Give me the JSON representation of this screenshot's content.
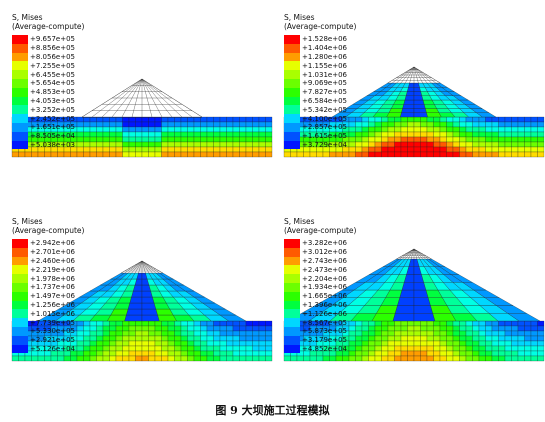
{
  "caption": "图 9 大坝施工过程模拟",
  "colors": [
    "#ff0000",
    "#ff5a00",
    "#ff9d00",
    "#ffdc00",
    "#e6ff00",
    "#a9ff00",
    "#6bff00",
    "#2cff00",
    "#00ff3f",
    "#00ff9a",
    "#00ffe4",
    "#00d7ff",
    "#0098ff",
    "#0052ff",
    "#0016ff"
  ],
  "panels": [
    {
      "title": "S, Mises",
      "subtitle": "(Average-compute)",
      "legend": [
        "+9.657e+05",
        "+8.856e+05",
        "+8.056e+05",
        "+7.255e+05",
        "+6.455e+05",
        "+5.654e+05",
        "+4.853e+05",
        "+4.053e+05",
        "+3.252e+05",
        "+2.452e+05",
        "+1.651e+05",
        "+8.505e+04",
        "+5.038e+03"
      ],
      "stage": 1
    },
    {
      "title": "S, Mises",
      "subtitle": "(Average-compute)",
      "legend": [
        "+1.528e+06",
        "+1.404e+06",
        "+1.280e+06",
        "+1.155e+06",
        "+1.031e+06",
        "+9.069e+05",
        "+7.827e+05",
        "+6.584e+05",
        "+5.342e+05",
        "+4.100e+05",
        "+2.857e+05",
        "+1.615e+05",
        "+3.729e+04"
      ],
      "stage": 2
    },
    {
      "title": "S, Mises",
      "subtitle": "(Average-compute)",
      "legend": [
        "+2.942e+06",
        "+2.701e+06",
        "+2.460e+06",
        "+2.219e+06",
        "+1.978e+06",
        "+1.737e+06",
        "+1.497e+06",
        "+1.256e+06",
        "+1.015e+06",
        "+7.739e+05",
        "+5.330e+05",
        "+2.921e+05",
        "+5.126e+04"
      ],
      "stage": 3
    },
    {
      "title": "S, Mises",
      "subtitle": "(Average-compute)",
      "legend": [
        "+3.282e+06",
        "+3.012e+06",
        "+2.743e+06",
        "+2.473e+06",
        "+2.204e+06",
        "+1.934e+06",
        "+1.665e+06",
        "+1.396e+06",
        "+1.126e+06",
        "+8.567e+05",
        "+5.873e+05",
        "+3.179e+05",
        "+4.852e+04"
      ],
      "stage": 4
    }
  ]
}
